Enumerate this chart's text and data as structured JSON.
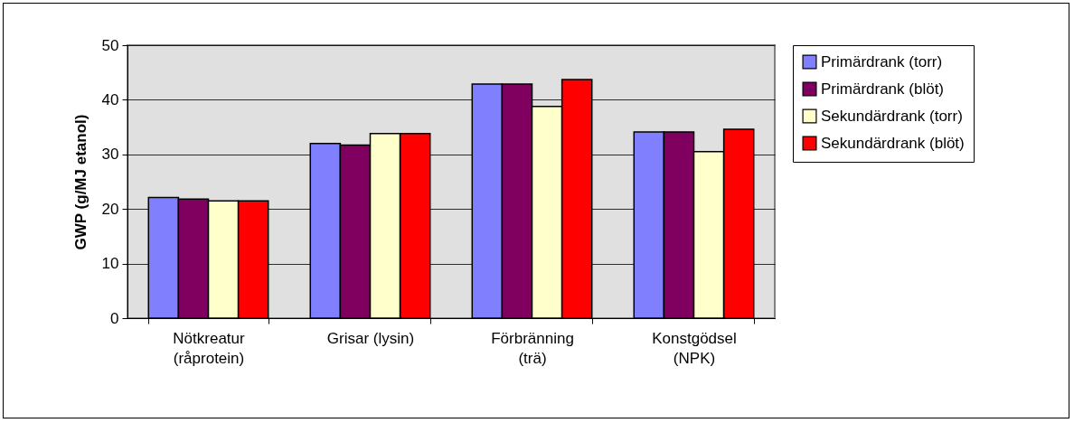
{
  "chart_data": {
    "type": "bar",
    "ylabel": "GWP (g/MJ etanol)",
    "categories": [
      "Nötkreatur\n(råprotein)",
      "Grisar (lysin)",
      "Förbränning\n(trä)",
      "Konstgödsel\n(NPK)"
    ],
    "series": [
      {
        "name": "Primärdrank (torr)",
        "color": "#8080ff",
        "values": [
          22.1,
          32.0,
          42.9,
          34.1
        ]
      },
      {
        "name": "Primärdrank (blöt)",
        "color": "#800060",
        "values": [
          21.8,
          31.7,
          42.9,
          34.1
        ]
      },
      {
        "name": "Sekundärdrank (torr)",
        "color": "#ffffcc",
        "values": [
          21.5,
          33.8,
          38.8,
          30.5
        ]
      },
      {
        "name": "Sekundärdrank (blöt)",
        "color": "#ff0000",
        "values": [
          21.5,
          33.8,
          43.7,
          34.6
        ]
      }
    ],
    "ylim": [
      0,
      50
    ],
    "yticks": [
      0,
      10,
      20,
      30,
      40,
      50
    ],
    "grid": "y",
    "legend": "right"
  }
}
